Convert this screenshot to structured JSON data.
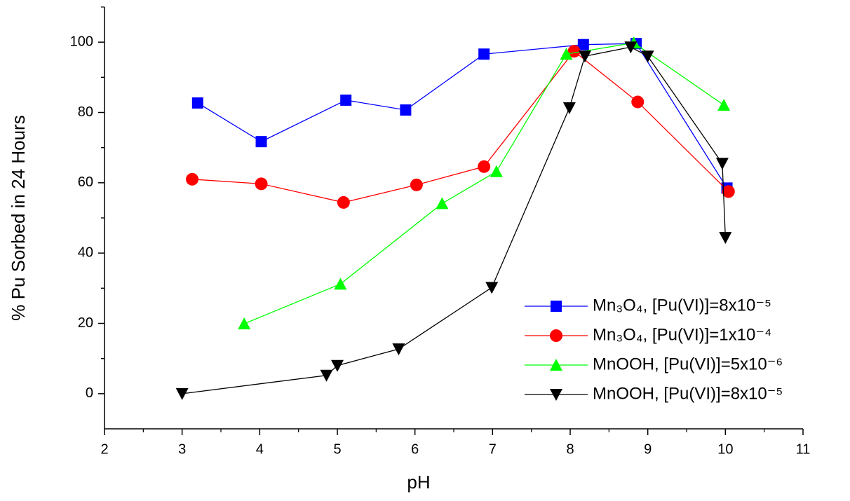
{
  "chart_data": {
    "type": "line",
    "xlabel": "pH",
    "ylabel": "% Pu Sorbed in 24 Hours",
    "xlim": [
      2,
      11
    ],
    "xticks": [
      2,
      3,
      4,
      5,
      6,
      7,
      8,
      9,
      10,
      11
    ],
    "ylim": [
      -10,
      110
    ],
    "yticks": [
      0,
      20,
      40,
      60,
      80,
      100
    ],
    "legend": "lower right",
    "series": [
      {
        "name": "Mn₃O₄, [Pu(VI)]=8x10⁻⁵",
        "color": "#0000ff",
        "marker": "square",
        "x": [
          3.2,
          4.02,
          5.11,
          5.88,
          6.89,
          8.17,
          8.85,
          10.02
        ],
        "values": [
          82.7,
          71.7,
          83.5,
          80.7,
          96.6,
          99.3,
          99.6,
          58.5
        ]
      },
      {
        "name": "Mn₃O₄, [Pu(VI)]=1x10⁻⁴",
        "color": "#ff0000",
        "marker": "circle",
        "x": [
          3.13,
          4.02,
          5.08,
          6.02,
          6.89,
          8.05,
          8.87,
          10.04
        ],
        "values": [
          61,
          59.7,
          54.4,
          59.4,
          64.6,
          97.4,
          83,
          57.5
        ]
      },
      {
        "name": "MnOOH, [Pu(VI)]=5x10⁻⁶",
        "color": "#00ff00",
        "marker": "triangle-up",
        "x": [
          3.8,
          5.04,
          6.35,
          7.05,
          7.95,
          8.82,
          9.98
        ],
        "values": [
          19.9,
          31.2,
          54.1,
          63.2,
          96.6,
          99.8,
          82.1
        ]
      },
      {
        "name": "MnOOH, [Pu(VI)]=8x10⁻⁵",
        "color": "#000000",
        "marker": "triangle-down",
        "x": [
          3,
          4.86,
          5,
          5.79,
          6.99,
          7.99,
          8.19,
          8.78,
          9,
          9.96,
          10
        ],
        "values": [
          0,
          5.2,
          8,
          12.7,
          30.2,
          81.3,
          96,
          98.6,
          96,
          65.5,
          44.4
        ]
      }
    ]
  }
}
